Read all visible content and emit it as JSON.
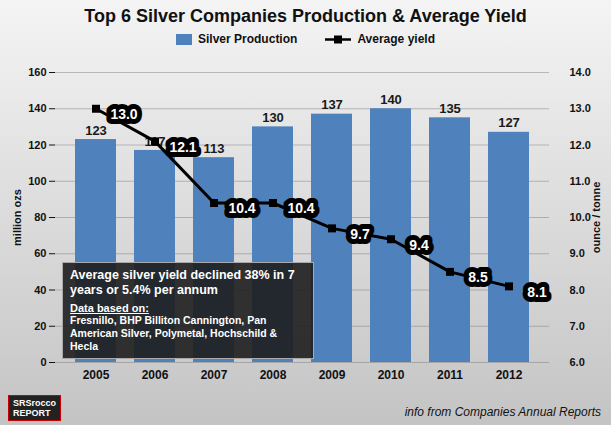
{
  "chart_data": {
    "type": "bar",
    "title": "Top 6 Silver Companies Production & Average Yield",
    "categories": [
      "2005",
      "2006",
      "2007",
      "2008",
      "2009",
      "2010",
      "2011",
      "2012"
    ],
    "series": [
      {
        "name": "Silver Production",
        "type": "bar",
        "color": "#4f81bd",
        "values": [
          123,
          117,
          113,
          130,
          137,
          140,
          135,
          127
        ]
      },
      {
        "name": "Average yield",
        "type": "line",
        "axis": "y2",
        "color": "#000000",
        "marker": "square",
        "values": [
          13.0,
          12.1,
          10.4,
          10.4,
          9.7,
          9.4,
          8.5,
          8.1
        ],
        "value_labels": [
          "13.0",
          "12.1",
          "10.4",
          "10.4",
          "9.7",
          "9.4",
          "8.5",
          "8.1"
        ]
      }
    ],
    "y_label": "million ozs",
    "y2_label": "ounce / tonne",
    "ylim": [
      0,
      160
    ],
    "yticks": [
      0,
      20,
      40,
      60,
      80,
      100,
      120,
      140,
      160
    ],
    "y2lim": [
      6,
      14
    ],
    "y2ticks": [
      {
        "value": 6,
        "label": "6.0"
      },
      {
        "value": 7,
        "label": "7.0"
      },
      {
        "value": 8,
        "label": "8.0"
      },
      {
        "value": 9,
        "label": "9.0"
      },
      {
        "value": 10,
        "label": "10.0"
      },
      {
        "value": 11,
        "label": "11.0"
      },
      {
        "value": 12,
        "label": "12.0"
      },
      {
        "value": 13,
        "label": "13.0"
      },
      {
        "value": 14,
        "label": "14.0"
      }
    ],
    "grid": true,
    "data_labels": true,
    "legend": "top",
    "annotation": {
      "heading": "Average silver yield declined 38% in 7 years or 5.4% per annum",
      "subheading": "Data based on:",
      "text": "Fresnillo, BHP Billiton Cannington, Pan American Silver, Polymetal, Hochschild & Hecla"
    },
    "logo": [
      "SRSrocco",
      "REPORT"
    ],
    "source": "info from Companies Annual Reports"
  }
}
